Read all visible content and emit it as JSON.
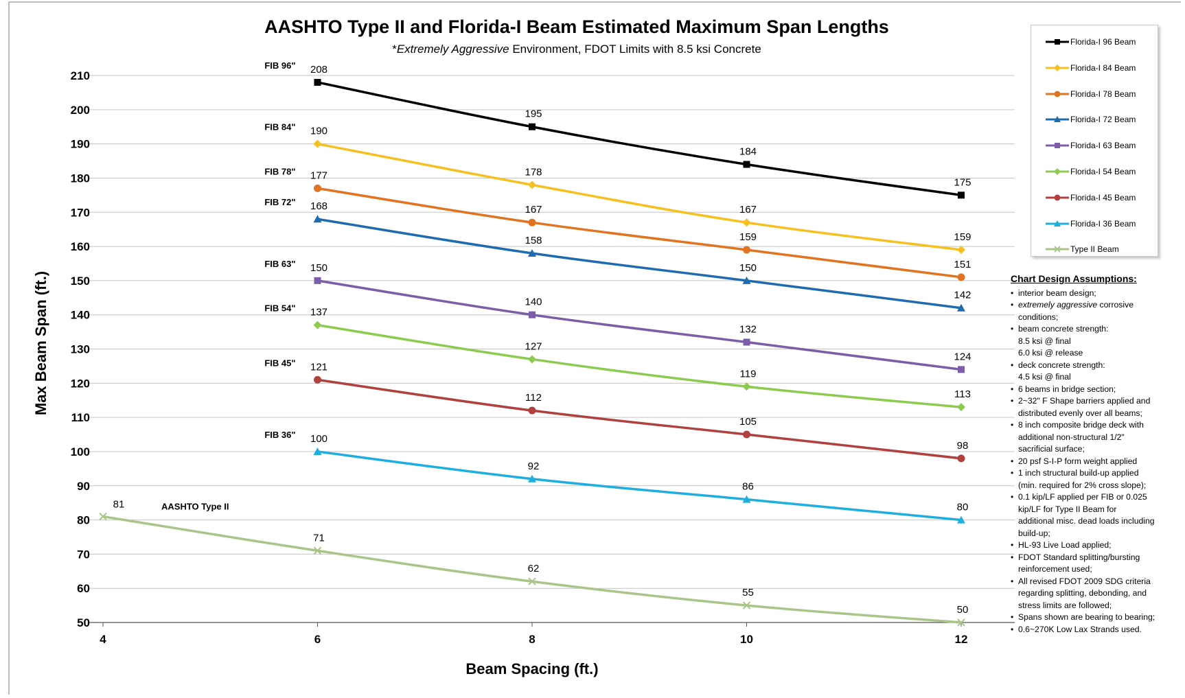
{
  "chart_data": {
    "type": "line",
    "title": "AASHTO Type II and Florida-I Beam Estimated Maximum Span Lengths",
    "subtitle": {
      "prefix": "*",
      "italic": "Extremely Aggressive",
      "rest": " Environment, FDOT Limits with 8.5 ksi Concrete"
    },
    "xlabel": "Beam Spacing (ft.)",
    "ylabel": "Max Beam Span (ft.)",
    "xlim": [
      4,
      12
    ],
    "ylim": [
      50,
      210
    ],
    "x_ticks": [
      "4",
      "6",
      "8",
      "10",
      "12"
    ],
    "y_ticks": [
      "50",
      "60",
      "70",
      "80",
      "90",
      "100",
      "110",
      "120",
      "130",
      "140",
      "150",
      "160",
      "170",
      "180",
      "190",
      "200",
      "210"
    ],
    "grid": "horizontal",
    "legend_position": "right",
    "series": [
      {
        "name": "Florida-I 96 Beam",
        "marker": "square",
        "color": "#000000",
        "x": [
          6,
          8,
          10,
          12
        ],
        "values": [
          208,
          195,
          184,
          175
        ],
        "labels": [
          "208",
          "195",
          "184",
          "175"
        ],
        "side_label": "FIB 96\""
      },
      {
        "name": "Florida-I 84 Beam",
        "marker": "diamond",
        "color": "#F5C020",
        "x": [
          6,
          8,
          10,
          12
        ],
        "values": [
          190,
          178,
          167,
          159
        ],
        "labels": [
          "190",
          "178",
          "167",
          "159"
        ],
        "side_label": "FIB 84\""
      },
      {
        "name": "Florida-I 78 Beam",
        "marker": "circle",
        "color": "#E07420",
        "x": [
          6,
          8,
          10,
          12
        ],
        "values": [
          177,
          167,
          159,
          151
        ],
        "labels": [
          "177",
          "167",
          "159",
          "151"
        ],
        "side_label": "FIB 78\""
      },
      {
        "name": "Florida-I 72 Beam",
        "marker": "triangle",
        "color": "#1F6BB0",
        "x": [
          6,
          8,
          10,
          12
        ],
        "values": [
          168,
          158,
          150,
          142
        ],
        "labels": [
          "168",
          "158",
          "150",
          "142"
        ],
        "side_label": "FIB 72\""
      },
      {
        "name": "Florida-I 63 Beam",
        "marker": "square",
        "color": "#7B5EA7",
        "x": [
          6,
          8,
          10,
          12
        ],
        "values": [
          150,
          140,
          132,
          124
        ],
        "labels": [
          "150",
          "140",
          "132",
          "124"
        ],
        "side_label": "FIB 63\""
      },
      {
        "name": "Florida-I 54 Beam",
        "marker": "diamond",
        "color": "#8CCB4F",
        "x": [
          6,
          8,
          10,
          12
        ],
        "values": [
          137,
          127,
          119,
          113
        ],
        "labels": [
          "137",
          "127",
          "119",
          "113"
        ],
        "side_label": "FIB 54\""
      },
      {
        "name": "Florida-I 45 Beam",
        "marker": "circle",
        "color": "#B0413E",
        "x": [
          6,
          8,
          10,
          12
        ],
        "values": [
          121,
          112,
          105,
          98
        ],
        "labels": [
          "121",
          "112",
          "105",
          "98"
        ],
        "side_label": "FIB 45\""
      },
      {
        "name": "Florida-I 36 Beam",
        "marker": "triangle",
        "color": "#1FAEE0",
        "x": [
          6,
          8,
          10,
          12
        ],
        "values": [
          100,
          92,
          86,
          80
        ],
        "labels": [
          "100",
          "92",
          "86",
          "80"
        ],
        "side_label": "FIB 36\""
      },
      {
        "name": "Type II Beam",
        "marker": "x",
        "color": "#A9C58A",
        "x": [
          4,
          6,
          8,
          10,
          12
        ],
        "values": [
          81,
          71,
          62,
          55,
          50
        ],
        "labels": [
          "81",
          "71",
          "62",
          "55",
          "50"
        ],
        "side_label": "AASHTO Type II"
      }
    ]
  },
  "assumptions": {
    "heading": "Chart Design Assumptions:",
    "items": [
      {
        "pre": "interior beam design;",
        "ital": "",
        "post": ""
      },
      {
        "pre": "",
        "ital": "extremely aggressive",
        "post": " corrosive\nconditions;"
      },
      {
        "pre": "beam concrete strength:\n    8.5 ksi @ final\n    6.0 ksi @ release",
        "ital": "",
        "post": ""
      },
      {
        "pre": "deck concrete strength:\n    4.5 ksi @ final",
        "ital": "",
        "post": ""
      },
      {
        "pre": "6 beams in bridge section;",
        "ital": "",
        "post": ""
      },
      {
        "pre": "2~32\" F Shape barriers applied and\ndistributed evenly over all beams;",
        "ital": "",
        "post": ""
      },
      {
        "pre": " 8 inch composite bridge deck with\nadditional non-structural 1/2\"\nsacrificial surface;",
        "ital": "",
        "post": ""
      },
      {
        "pre": "20 psf S-I-P form weight applied",
        "ital": "",
        "post": ""
      },
      {
        "pre": " 1 inch structural build-up applied\n(min. required for 2% cross slope);",
        "ital": "",
        "post": ""
      },
      {
        "pre": " 0.1 kip/LF applied per  FIB  or 0.025\nkip/LF for Type II Beam for\nadditional misc. dead loads including\nbuild-up;",
        "ital": "",
        "post": ""
      },
      {
        "pre": "HL-93 Live Load applied;",
        "ital": "",
        "post": ""
      },
      {
        "pre": " FDOT Standard splitting/bursting\nreinforcement used;",
        "ital": "",
        "post": ""
      },
      {
        "pre": " All revised FDOT 2009 SDG criteria\nregarding splitting, debonding, and\nstress limits are followed;",
        "ital": "",
        "post": ""
      },
      {
        "pre": "Spans shown are bearing to bearing;",
        "ital": "",
        "post": ""
      },
      {
        "pre": "0.6~270K Low Lax Strands used.",
        "ital": "",
        "post": ""
      }
    ]
  }
}
